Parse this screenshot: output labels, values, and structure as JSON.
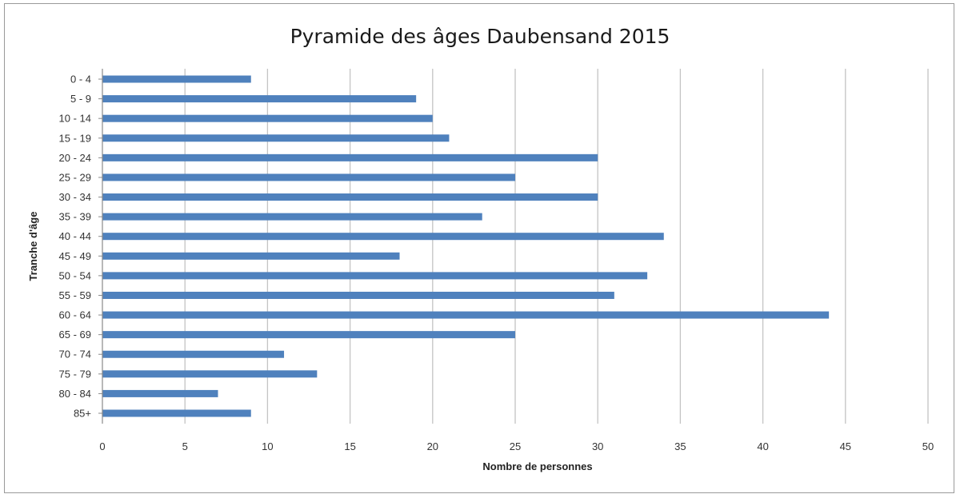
{
  "chart_data": {
    "type": "bar",
    "orientation": "horizontal",
    "title": "Pyramide des âges Daubensand 2015",
    "xlabel": "Nombre de personnes",
    "ylabel": "Tranche d'âge",
    "categories": [
      "0 - 4",
      "5 - 9",
      "10 - 14",
      "15 - 19",
      "20 - 24",
      "25 - 29",
      "30 - 34",
      "35 - 39",
      "40 - 44",
      "45 - 49",
      "50 - 54",
      "55 - 59",
      "60 - 64",
      "65 - 69",
      "70 - 74",
      "75 - 79",
      "80 - 84",
      "85+"
    ],
    "values": [
      9,
      19,
      20,
      21,
      30,
      25,
      30,
      23,
      34,
      18,
      33,
      31,
      44,
      25,
      11,
      13,
      7,
      9
    ],
    "xlim": [
      0,
      50
    ],
    "xticks": [
      "0",
      "5",
      "10",
      "15",
      "20",
      "25",
      "30",
      "35",
      "40",
      "45",
      "50"
    ],
    "grid": "vertical",
    "legend": "none",
    "bar_color": "#4f81bd"
  }
}
